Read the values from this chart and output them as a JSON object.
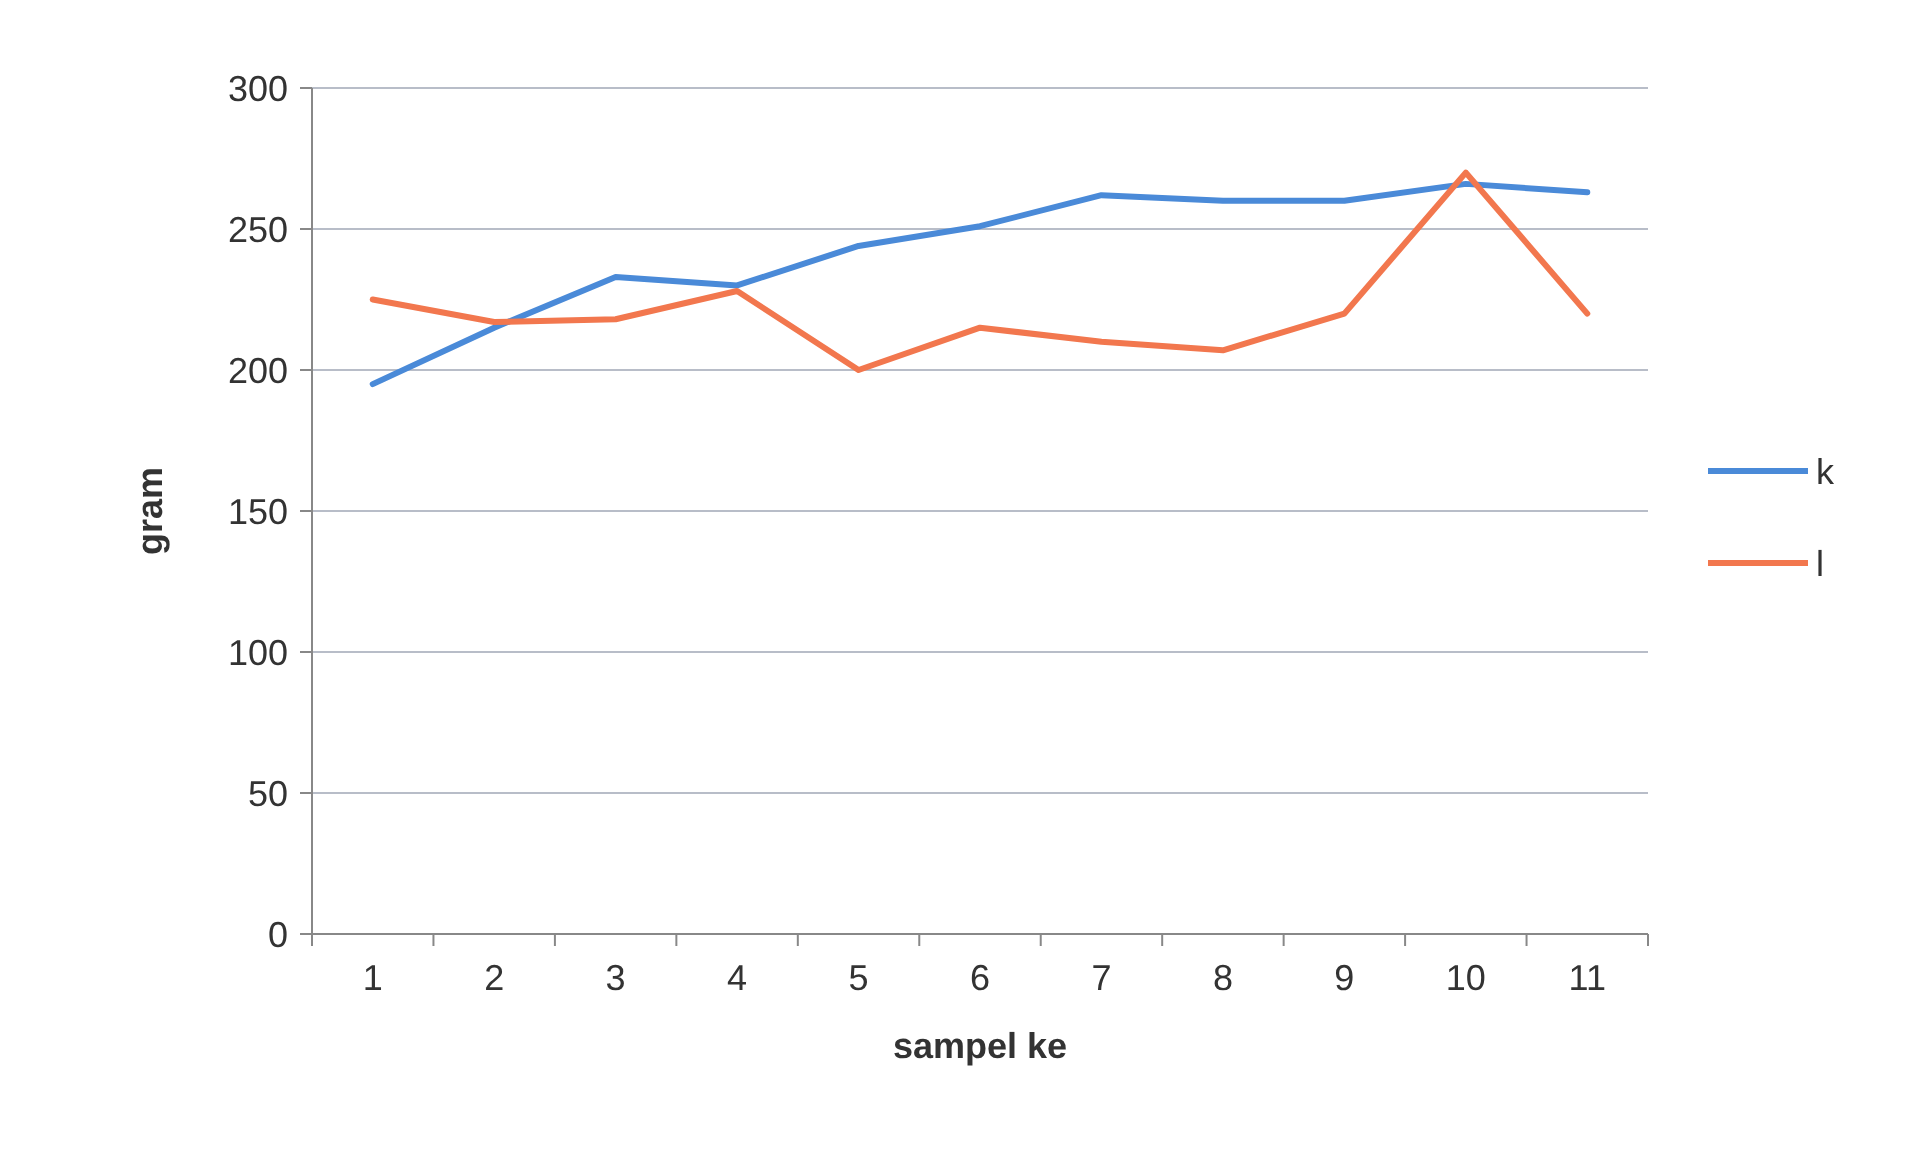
{
  "chart_data": {
    "type": "line",
    "xlabel": "sampel ke",
    "ylabel": "gram",
    "categories": [
      "1",
      "2",
      "3",
      "4",
      "5",
      "6",
      "7",
      "8",
      "9",
      "10",
      "11"
    ],
    "series": [
      {
        "name": "k",
        "color": "#4a8ad8",
        "values": [
          195,
          215,
          233,
          230,
          244,
          251,
          262,
          260,
          260,
          266,
          263
        ]
      },
      {
        "name": "l",
        "color": "#f2774e",
        "values": [
          225,
          217,
          218,
          228,
          200,
          215,
          210,
          207,
          220,
          270,
          220
        ]
      }
    ],
    "ylim": [
      0,
      300
    ],
    "yticks": [
      0,
      50,
      100,
      150,
      200,
      250,
      300
    ],
    "grid": "y",
    "legend": "right",
    "marker": "none",
    "line_style": "solid"
  }
}
